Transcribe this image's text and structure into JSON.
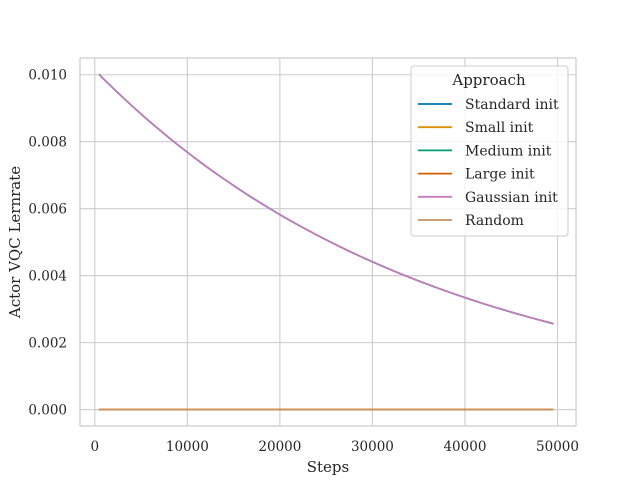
{
  "chart_data": {
    "type": "line",
    "title": "",
    "xlabel": "Steps",
    "ylabel": "Actor VQC Lernrate",
    "xlim": [
      -1600,
      52000
    ],
    "ylim": [
      -0.00049,
      0.0105
    ],
    "xticks": [
      0,
      10000,
      20000,
      30000,
      40000,
      50000
    ],
    "xtick_labels": [
      "0",
      "10000",
      "20000",
      "30000",
      "40000",
      "50000"
    ],
    "yticks": [
      0.0,
      0.002,
      0.004,
      0.006,
      0.008,
      0.01
    ],
    "ytick_labels": [
      "0.000",
      "0.002",
      "0.004",
      "0.006",
      "0.008",
      "0.010"
    ],
    "grid": true,
    "legend": {
      "title": "Approach",
      "placement": "top-right"
    },
    "series": [
      {
        "name": "Standard init",
        "color": "#0173b2",
        "x": [
          500,
          5000,
          10000,
          15000,
          20000,
          25000,
          30000,
          35000,
          40000,
          45000,
          49500
        ],
        "y": [
          0.01,
          0.00871,
          0.00758,
          0.0066,
          0.00575,
          0.00501,
          0.00436,
          0.0038,
          0.00331,
          0.00288,
          0.00257
        ]
      },
      {
        "name": "Small init",
        "color": "#de8f05",
        "x": [
          500,
          49500
        ],
        "y": [
          0.0,
          0.0
        ]
      },
      {
        "name": "Medium init",
        "color": "#029e73",
        "x": [
          500,
          5000,
          10000,
          15000,
          20000,
          25000,
          30000,
          35000,
          40000,
          45000,
          49500
        ],
        "y": [
          0.01,
          0.00871,
          0.00758,
          0.0066,
          0.00575,
          0.00501,
          0.00436,
          0.0038,
          0.00331,
          0.00288,
          0.00257
        ]
      },
      {
        "name": "Large init",
        "color": "#d55e00",
        "x": [
          500,
          49500
        ],
        "y": [
          0.0,
          0.0
        ]
      },
      {
        "name": "Gaussian init",
        "color": "#cc78bc",
        "x": [
          500,
          5000,
          10000,
          15000,
          20000,
          25000,
          30000,
          35000,
          40000,
          45000,
          49500
        ],
        "y": [
          0.01,
          0.00871,
          0.00758,
          0.0066,
          0.00575,
          0.00501,
          0.00436,
          0.0038,
          0.00331,
          0.00288,
          0.00257
        ]
      },
      {
        "name": "Random",
        "color": "#ca9161",
        "x": [
          500,
          49500
        ],
        "y": [
          0.0,
          0.0
        ]
      }
    ]
  },
  "colors": {
    "grid": "#cccccc",
    "frame": "#cccccc",
    "text": "#262626"
  }
}
